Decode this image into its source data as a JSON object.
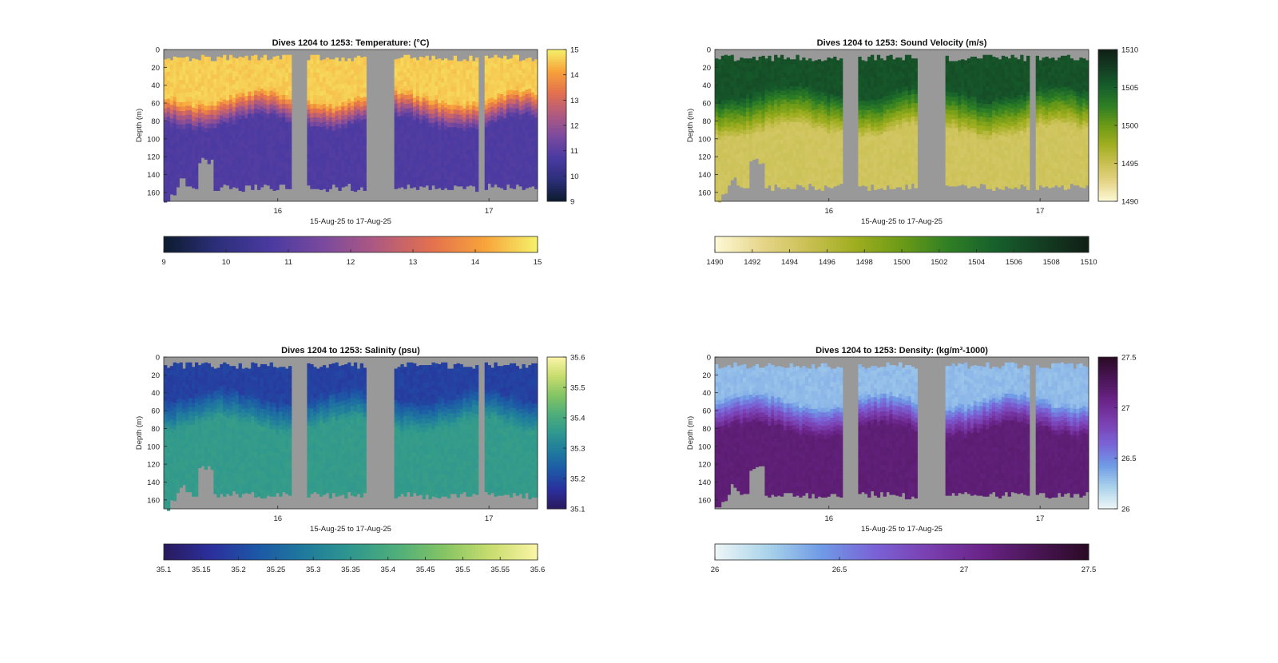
{
  "chart_data": [
    {
      "type": "heatmap",
      "title": "Dives 1204 to 1253: Temperature",
      "title_unit": "(°C)",
      "xlabel": "15-Aug-25 to 17-Aug-25",
      "ylabel": "Depth (m)",
      "xticks": [
        "16",
        "17"
      ],
      "yticks": [
        "0",
        "20",
        "40",
        "60",
        "80",
        "100",
        "120",
        "140",
        "160"
      ],
      "ylim": [
        0,
        170
      ],
      "clim": [
        9,
        15
      ],
      "cbar_ticks_vertical": [
        "9",
        "10",
        "11",
        "12",
        "13",
        "14",
        "15"
      ],
      "cbar_ticks_horizontal": [
        "9",
        "10",
        "11",
        "12",
        "13",
        "14",
        "15"
      ],
      "colormap": [
        "#0d1b2e",
        "#2c2f7a",
        "#4a3aa1",
        "#7b4a9e",
        "#b05a7f",
        "#e3704f",
        "#f7a33a",
        "#f5f26a"
      ],
      "gap_color": "#999999",
      "profile": {
        "surface": 14.6,
        "mixed_depth": 50,
        "deep": 10.8,
        "deep_depth": 80
      }
    },
    {
      "type": "heatmap",
      "title": "Dives 1204 to 1253: Sound Velocity (m/s)",
      "xlabel": "15-Aug-25 to 17-Aug-25",
      "ylabel": "Depth (m)",
      "xticks": [
        "16",
        "17"
      ],
      "yticks": [
        "0",
        "20",
        "40",
        "60",
        "80",
        "100",
        "120",
        "140",
        "160"
      ],
      "ylim": [
        0,
        170
      ],
      "clim": [
        1490,
        1510
      ],
      "cbar_ticks_vertical": [
        "1490",
        "1495",
        "1500",
        "1505",
        "1510"
      ],
      "cbar_ticks_horizontal": [
        "1490",
        "1492",
        "1494",
        "1496",
        "1498",
        "1500",
        "1502",
        "1504",
        "1506",
        "1508",
        "1510"
      ],
      "colormap": [
        "#fdf9d6",
        "#e6d68a",
        "#c9c053",
        "#9fae1f",
        "#6c9a17",
        "#2f7f24",
        "#17602c",
        "#143d22",
        "#101f15"
      ],
      "gap_color": "#999999",
      "profile": {
        "surface": 1506,
        "mixed_depth": 45,
        "deep": 1494.5,
        "deep_depth": 90
      }
    },
    {
      "type": "heatmap",
      "title": "Dives 1204 to 1253: Salinity (psu)",
      "xlabel": "15-Aug-25 to 17-Aug-25",
      "ylabel": "Depth (m)",
      "xticks": [
        "16",
        "17"
      ],
      "yticks": [
        "0",
        "20",
        "40",
        "60",
        "80",
        "100",
        "120",
        "140",
        "160"
      ],
      "ylim": [
        0,
        170
      ],
      "clim": [
        35.1,
        35.6
      ],
      "cbar_ticks_vertical": [
        "35.1",
        "35.2",
        "35.3",
        "35.4",
        "35.5",
        "35.6"
      ],
      "cbar_ticks_horizontal": [
        "35.1",
        "35.15",
        "35.2",
        "35.25",
        "35.3",
        "35.35",
        "35.4",
        "35.45",
        "35.5",
        "35.55",
        "35.6"
      ],
      "colormap": [
        "#2a1a5e",
        "#2b2f9c",
        "#1d57a6",
        "#1f7a9e",
        "#2f978e",
        "#4fae7a",
        "#85c464",
        "#c8dd6e",
        "#fbf5a8"
      ],
      "gap_color": "#999999",
      "profile": {
        "surface": 35.19,
        "mixed_depth": 40,
        "deep": 35.36,
        "deep_depth": 75
      }
    },
    {
      "type": "heatmap",
      "title": "Dives 1204 to 1253: Density",
      "title_unit": "(kg/m³-1000)",
      "xlabel": "15-Aug-25 to 17-Aug-25",
      "ylabel": "Depth (m)",
      "xticks": [
        "16",
        "17"
      ],
      "yticks": [
        "0",
        "20",
        "40",
        "60",
        "80",
        "100",
        "120",
        "140",
        "160"
      ],
      "ylim": [
        0,
        170
      ],
      "clim": [
        26,
        27.5
      ],
      "cbar_ticks_vertical": [
        "26",
        "26.5",
        "27",
        "27.5"
      ],
      "cbar_ticks_horizontal": [
        "26",
        "26.5",
        "27",
        "27.5"
      ],
      "colormap": [
        "#eef6f7",
        "#a9d3ea",
        "#6f9ae6",
        "#7a62d6",
        "#7a3fb0",
        "#6a2488",
        "#4a1556",
        "#2a0a24"
      ],
      "gap_color": "#999999",
      "profile": {
        "surface": 26.3,
        "mixed_depth": 45,
        "deep": 27.15,
        "deep_depth": 80
      }
    }
  ]
}
